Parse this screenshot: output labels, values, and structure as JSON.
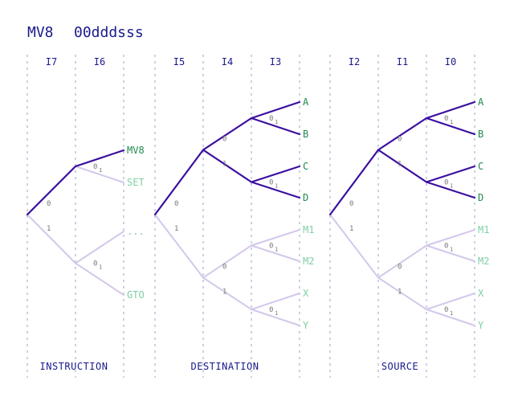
{
  "title": {
    "left": "MV8",
    "right": "00dddsss"
  },
  "colors": {
    "active": "#3b0fa0",
    "inactive": "#d4c8ea",
    "leaf_active": "#1e8a4e",
    "leaf_inactive": "#7fcfa5",
    "text": "#1a1a8c",
    "bit": "#777777",
    "grid": "#9aa6c8"
  },
  "sections": [
    {
      "id": "instruction",
      "label": "INSTRUCTION",
      "columns": [
        "I7",
        "I6"
      ],
      "leaves": [
        "MV8",
        "SET",
        "...",
        "GTO"
      ],
      "active_leaves": [
        "MV8"
      ]
    },
    {
      "id": "destination",
      "label": "DESTINATION",
      "columns": [
        "I5",
        "I4",
        "I3"
      ],
      "leaves": [
        "A",
        "B",
        "C",
        "D",
        "M1",
        "M2",
        "X",
        "Y"
      ],
      "active_leaves": [
        "A",
        "B",
        "C",
        "D"
      ]
    },
    {
      "id": "source",
      "label": "SOURCE",
      "columns": [
        "I2",
        "I1",
        "I0"
      ],
      "leaves": [
        "A",
        "B",
        "C",
        "D",
        "M1",
        "M2",
        "X",
        "Y"
      ],
      "active_leaves": [
        "A",
        "B",
        "C",
        "D"
      ]
    }
  ],
  "bit_labels": {
    "zero": "0",
    "one": "1",
    "zero_one": "0",
    "zero_one_sub": "1"
  }
}
